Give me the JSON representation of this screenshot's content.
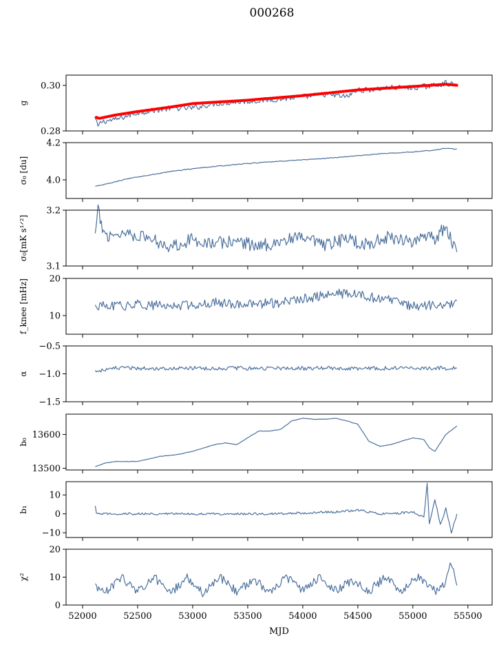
{
  "figure_title": "000268",
  "colors": {
    "series": "#4a6f9c",
    "fit": "#ff0000",
    "axes": "#000000"
  },
  "chart_data": [
    {
      "type": "line",
      "ylabel": "g",
      "xlim": [
        51850,
        55720
      ],
      "ylim": [
        0.28,
        0.3045
      ],
      "yticks": [
        0.28,
        0.3
      ],
      "ytick_labels": [
        "0.28",
        "0.30"
      ],
      "series": [
        {
          "color": "#4a6f9c",
          "x": [
            52115,
            52140,
            52170,
            52300,
            52500,
            52800,
            53000,
            53200,
            53500,
            53800,
            54000,
            54200,
            54400,
            54500,
            54600,
            54800,
            55000,
            55200,
            55300,
            55400
          ],
          "y": [
            0.285,
            0.282,
            0.284,
            0.285,
            0.288,
            0.29,
            0.29,
            0.292,
            0.293,
            0.294,
            0.295,
            0.296,
            0.295,
            0.298,
            0.298,
            0.299,
            0.299,
            0.3,
            0.301,
            0.3
          ]
        },
        {
          "color": "#ff0000",
          "x": [
            52115,
            52125,
            52150,
            52300,
            52500,
            52800,
            53000,
            53500,
            54000,
            54500,
            55000,
            55300,
            55410
          ],
          "y": [
            0.2855,
            0.286,
            0.2855,
            0.287,
            0.2885,
            0.2905,
            0.292,
            0.2935,
            0.2955,
            0.298,
            0.2995,
            0.3005,
            0.3
          ]
        }
      ]
    },
    {
      "type": "line",
      "ylabel": "σ₀ [du]",
      "xlim": [
        51850,
        55720
      ],
      "ylim": [
        3.9,
        4.2
      ],
      "yticks": [
        4.0,
        4.2
      ],
      "ytick_labels": [
        "4.0",
        "4.2"
      ],
      "series": [
        {
          "color": "#4a6f9c",
          "x": [
            52115,
            52200,
            52400,
            52600,
            52800,
            53000,
            53200,
            53500,
            53800,
            54000,
            54200,
            54500,
            54700,
            55000,
            55200,
            55300,
            55400
          ],
          "y": [
            3.965,
            3.975,
            4.005,
            4.025,
            4.045,
            4.06,
            4.072,
            4.088,
            4.1,
            4.108,
            4.115,
            4.13,
            4.14,
            4.15,
            4.16,
            4.17,
            4.165
          ]
        }
      ]
    },
    {
      "type": "line",
      "ylabel": "σ₀[mK s¹ᐟ²]",
      "xlim": [
        51850,
        55720
      ],
      "ylim": [
        3.1,
        3.2
      ],
      "yticks": [
        3.1,
        3.2
      ],
      "ytick_labels": [
        "3.1",
        "3.2"
      ],
      "series": [
        {
          "color": "#4a6f9c",
          "x": [
            52115,
            52140,
            52200,
            52400,
            52600,
            52800,
            53000,
            53200,
            53400,
            53600,
            53800,
            54000,
            54200,
            54400,
            54500,
            54600,
            54800,
            55000,
            55200,
            55300,
            55400
          ],
          "y": [
            3.155,
            3.198,
            3.155,
            3.16,
            3.15,
            3.135,
            3.148,
            3.14,
            3.145,
            3.135,
            3.145,
            3.15,
            3.135,
            3.15,
            3.142,
            3.14,
            3.152,
            3.145,
            3.15,
            3.17,
            3.125
          ]
        }
      ]
    },
    {
      "type": "line",
      "ylabel": "f_knee [mHz]",
      "xlim": [
        51850,
        55720
      ],
      "ylim": [
        5,
        20
      ],
      "yticks": [
        10,
        20
      ],
      "ytick_labels": [
        "10",
        "20"
      ],
      "series": [
        {
          "color": "#4a6f9c",
          "x": [
            52115,
            52300,
            52500,
            52800,
            53000,
            53200,
            53500,
            53800,
            54000,
            54200,
            54400,
            54600,
            54800,
            55000,
            55200,
            55300,
            55400
          ],
          "y": [
            12.5,
            12.5,
            13,
            12.5,
            13,
            13.5,
            13,
            13.5,
            14.5,
            15.5,
            16,
            15,
            14,
            12.5,
            13,
            12.5,
            14
          ]
        }
      ]
    },
    {
      "type": "line",
      "ylabel": "α",
      "xlim": [
        51850,
        55720
      ],
      "ylim": [
        -1.5,
        -0.5
      ],
      "yticks": [
        -1.5,
        -1.0,
        -0.5
      ],
      "ytick_labels": [
        "−1.5",
        "−1.0",
        "−0.5"
      ],
      "series": [
        {
          "color": "#4a6f9c",
          "x": [
            52115,
            52300,
            52600,
            52900,
            53200,
            53500,
            53800,
            54100,
            54400,
            54700,
            55000,
            55300,
            55400
          ],
          "y": [
            -0.95,
            -0.9,
            -0.9,
            -0.9,
            -0.9,
            -0.9,
            -0.9,
            -0.9,
            -0.9,
            -0.9,
            -0.9,
            -0.9,
            -0.9
          ]
        }
      ]
    },
    {
      "type": "line",
      "ylabel": "b₀",
      "xlim": [
        51850,
        55720
      ],
      "ylim": [
        13495,
        13660
      ],
      "yticks": [
        13500,
        13600
      ],
      "ytick_labels": [
        "13500",
        "13600"
      ],
      "series": [
        {
          "color": "#4a6f9c",
          "x": [
            52115,
            52200,
            52300,
            52500,
            52700,
            52850,
            53000,
            53200,
            53300,
            53400,
            53500,
            53600,
            53700,
            53800,
            53900,
            54000,
            54100,
            54200,
            54300,
            54400,
            54500,
            54600,
            54700,
            54800,
            54900,
            55000,
            55100,
            55150,
            55200,
            55300,
            55400
          ],
          "y": [
            13505,
            13515,
            13520,
            13520,
            13535,
            13540,
            13550,
            13570,
            13575,
            13570,
            13590,
            13610,
            13610,
            13615,
            13640,
            13648,
            13645,
            13645,
            13648,
            13640,
            13630,
            13580,
            13565,
            13570,
            13580,
            13590,
            13585,
            13560,
            13550,
            13600,
            13625
          ]
        }
      ]
    },
    {
      "type": "line",
      "ylabel": "b₁",
      "xlim": [
        51850,
        55720
      ],
      "ylim": [
        -12.5,
        17
      ],
      "yticks": [
        -10,
        0,
        10
      ],
      "ytick_labels": [
        "−10",
        "0",
        "10"
      ],
      "series": [
        {
          "color": "#4a6f9c",
          "x": [
            52115,
            52125,
            52200,
            52500,
            52800,
            53100,
            53400,
            53700,
            54000,
            54300,
            54500,
            54700,
            54900,
            55000,
            55100,
            55130,
            55150,
            55200,
            55250,
            55300,
            55350,
            55400
          ],
          "y": [
            4,
            0,
            0,
            0,
            0,
            0,
            0,
            0,
            0.5,
            1,
            2,
            0,
            0.5,
            1,
            -2,
            16,
            -5,
            8,
            -6,
            3,
            -10,
            0
          ]
        }
      ]
    },
    {
      "type": "line",
      "ylabel": "χ²",
      "xlabel": "MJD",
      "xlim": [
        51850,
        55720
      ],
      "ylim": [
        0,
        20
      ],
      "yticks": [
        0,
        10,
        20
      ],
      "ytick_labels": [
        "0",
        "10",
        "20"
      ],
      "xticks": [
        52000,
        52500,
        53000,
        53500,
        54000,
        54500,
        55000,
        55500
      ],
      "xtick_labels": [
        "52000",
        "52500",
        "53000",
        "53500",
        "54000",
        "54500",
        "55000",
        "55500"
      ],
      "series": [
        {
          "color": "#4a6f9c",
          "x": [
            52115,
            52200,
            52350,
            52500,
            52650,
            52800,
            52950,
            53100,
            53250,
            53400,
            53550,
            53700,
            53850,
            54000,
            54150,
            54300,
            54450,
            54600,
            54750,
            54900,
            55050,
            55200,
            55300,
            55350,
            55400
          ],
          "y": [
            7,
            4,
            10,
            5,
            10,
            4,
            10,
            4,
            10,
            5,
            9,
            5,
            10,
            5,
            10,
            5,
            9,
            5,
            10,
            5,
            10,
            5,
            8,
            15,
            7
          ]
        }
      ]
    }
  ]
}
